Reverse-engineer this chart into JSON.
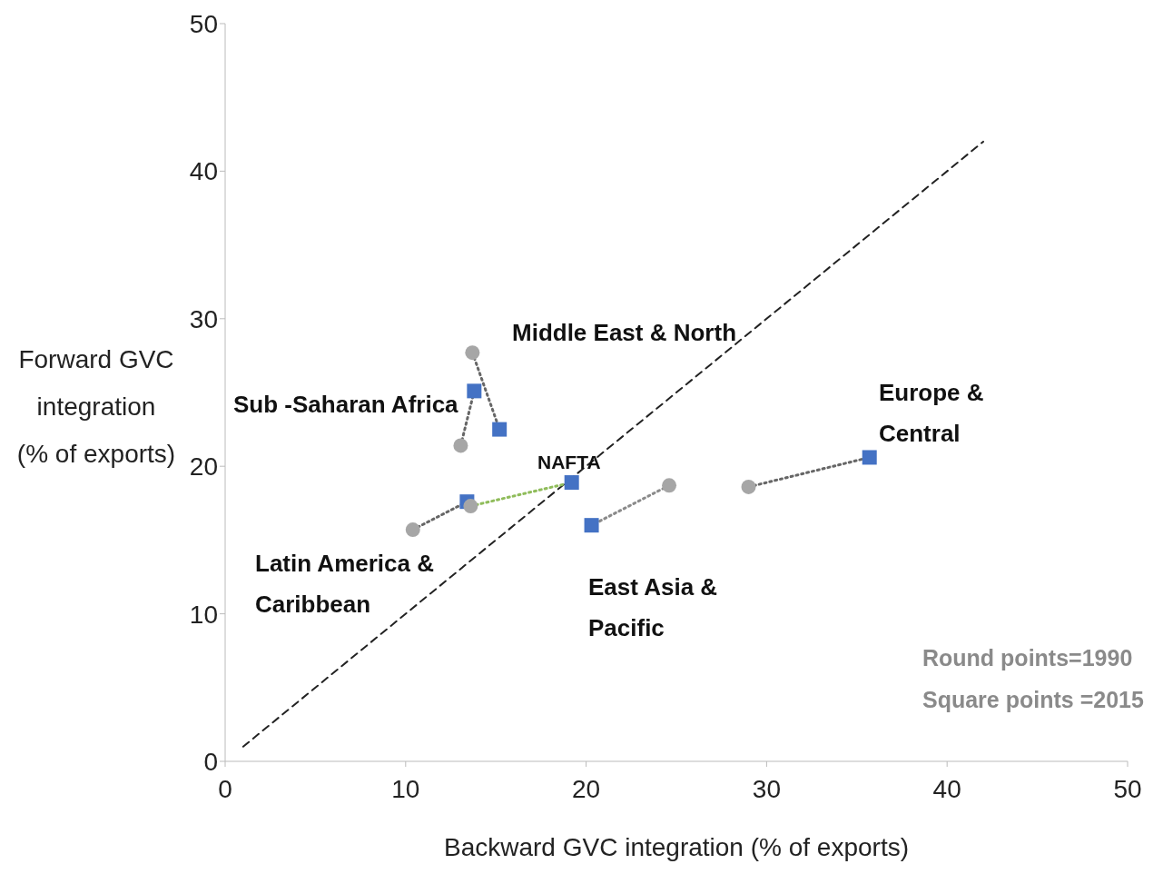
{
  "chart_data": {
    "type": "scatter",
    "xlabel": "Backward GVC integration (% of exports)",
    "ylabel": "Forward GVC\nintegration\n(% of exports)",
    "xlim": [
      0,
      50
    ],
    "ylim": [
      0,
      50
    ],
    "xticks": [
      0,
      10,
      20,
      30,
      40,
      50
    ],
    "yticks": [
      0,
      10,
      20,
      30,
      40,
      50
    ],
    "series": [
      {
        "type": "line",
        "x": [
          1,
          42
        ],
        "values": [
          1,
          42
        ],
        "color": "#222222",
        "line_style": "dashed",
        "marker": "none"
      },
      {
        "type": "line",
        "x": [
          13.05,
          13.8
        ],
        "values": [
          21.4,
          25.1
        ],
        "color": "#666666",
        "line_style": "dotted",
        "marker": "none"
      },
      {
        "type": "line",
        "x": [
          13.7,
          15.2
        ],
        "values": [
          27.7,
          22.5
        ],
        "color": "#666666",
        "line_style": "dotted",
        "marker": "none"
      },
      {
        "type": "line",
        "x": [
          10.4,
          13.4
        ],
        "values": [
          15.7,
          17.6
        ],
        "color": "#666666",
        "line_style": "dotted",
        "marker": "none"
      },
      {
        "type": "line",
        "x": [
          13.6,
          19.2
        ],
        "values": [
          17.3,
          18.9
        ],
        "color": "#8fbc5a",
        "line_style": "dotted",
        "marker": "none"
      },
      {
        "type": "line",
        "x": [
          24.6,
          20.3
        ],
        "values": [
          18.7,
          16.0
        ],
        "color": "#8a8a8a",
        "line_style": "dotted",
        "marker": "none"
      },
      {
        "type": "line",
        "x": [
          29.0,
          35.7
        ],
        "values": [
          18.6,
          20.6
        ],
        "color": "#666666",
        "line_style": "dotted",
        "marker": "none"
      },
      {
        "type": "scatter",
        "x": [
          13.8,
          15.2,
          13.4,
          19.2,
          20.3,
          35.7
        ],
        "values": [
          25.1,
          22.5,
          17.6,
          18.9,
          16.0,
          20.6
        ],
        "color": "#4472c4",
        "marker": "square"
      },
      {
        "type": "scatter",
        "x": [
          13.05,
          13.7,
          10.4,
          13.6,
          24.6,
          29.0
        ],
        "values": [
          21.4,
          27.7,
          15.7,
          17.3,
          18.7,
          18.6
        ],
        "color": "#a6a6a6",
        "marker": "circle"
      }
    ],
    "annotations": [
      "Middle East & North",
      "Sub -Saharan Africa",
      "NAFTA",
      "Latin America &\nCaribbean",
      "East Asia &\nPacific",
      "Europe &\nCentral",
      "Round points=1990",
      "Square points =2015"
    ]
  }
}
